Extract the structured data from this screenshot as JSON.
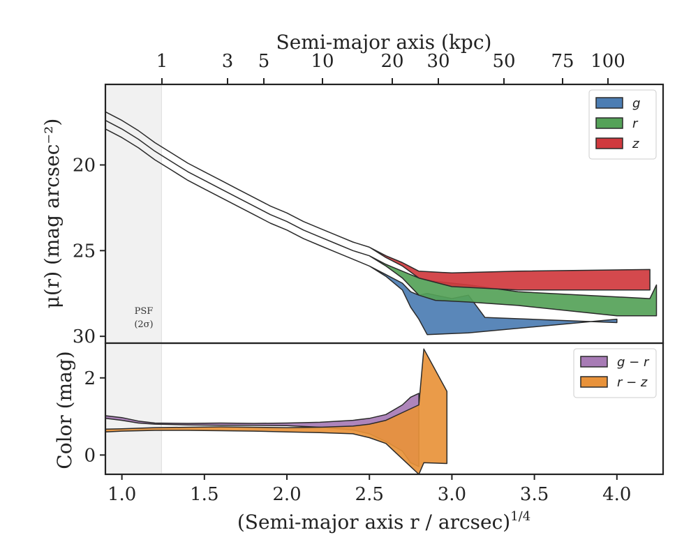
{
  "chart_data": [
    {
      "type": "area",
      "panel": "surface-brightness",
      "top_axis": {
        "label": "Semi-major axis (kpc)",
        "ticks": [
          1,
          3,
          5,
          10,
          20,
          30,
          50,
          75,
          100
        ],
        "tick_labels": [
          "1",
          "3",
          "5",
          "10",
          "20",
          "30",
          "50",
          "75",
          "100"
        ]
      },
      "ylabel": "μ(r) (mag arcsec⁻²)",
      "ylim": [
        30.4,
        15.3
      ],
      "yticks": [
        20,
        25,
        30
      ],
      "ytick_labels": [
        "20",
        "25",
        "30"
      ],
      "xlim": [
        0.9,
        4.28
      ],
      "legend": {
        "placement": "top-right",
        "entries": [
          "g",
          "r",
          "z"
        ]
      },
      "psf_label": [
        "PSF",
        "(2σ)"
      ],
      "psf_limit_x": 1.24,
      "series": [
        {
          "name": "g",
          "color": "#4c7db3",
          "upper": [
            [
              0.9,
              17.9
            ],
            [
              1.0,
              18.4
            ],
            [
              1.1,
              19.0
            ],
            [
              1.2,
              19.7
            ],
            [
              1.3,
              20.3
            ],
            [
              1.4,
              20.9
            ],
            [
              1.5,
              21.4
            ],
            [
              1.6,
              21.9
            ],
            [
              1.7,
              22.4
            ],
            [
              1.8,
              22.9
            ],
            [
              1.9,
              23.4
            ],
            [
              2.0,
              23.8
            ],
            [
              2.1,
              24.3
            ],
            [
              2.2,
              24.7
            ],
            [
              2.3,
              25.1
            ],
            [
              2.4,
              25.5
            ],
            [
              2.5,
              25.9
            ],
            [
              2.6,
              26.4
            ],
            [
              2.7,
              26.9
            ],
            [
              2.75,
              27.4
            ],
            [
              2.8,
              27.6
            ],
            [
              2.85,
              27.5
            ],
            [
              3.0,
              27.8
            ],
            [
              3.1,
              27.6
            ],
            [
              3.2,
              28.9
            ],
            [
              4.0,
              29.2
            ]
          ],
          "lower": [
            [
              0.9,
              17.9
            ],
            [
              1.0,
              18.4
            ],
            [
              1.1,
              19.0
            ],
            [
              1.2,
              19.7
            ],
            [
              1.3,
              20.3
            ],
            [
              1.4,
              20.9
            ],
            [
              1.5,
              21.4
            ],
            [
              1.6,
              21.9
            ],
            [
              1.7,
              22.4
            ],
            [
              1.8,
              22.9
            ],
            [
              1.9,
              23.4
            ],
            [
              2.0,
              23.8
            ],
            [
              2.1,
              24.3
            ],
            [
              2.2,
              24.7
            ],
            [
              2.3,
              25.1
            ],
            [
              2.4,
              25.5
            ],
            [
              2.5,
              25.9
            ],
            [
              2.6,
              26.5
            ],
            [
              2.7,
              27.3
            ],
            [
              2.75,
              28.3
            ],
            [
              2.8,
              29.0
            ],
            [
              2.85,
              29.9
            ],
            [
              3.1,
              29.8
            ],
            [
              4.0,
              29.0
            ]
          ]
        },
        {
          "name": "r",
          "color": "#55a258",
          "upper": [
            [
              0.9,
              17.4
            ],
            [
              1.0,
              17.9
            ],
            [
              1.1,
              18.5
            ],
            [
              1.2,
              19.2
            ],
            [
              1.3,
              19.8
            ],
            [
              1.4,
              20.4
            ],
            [
              1.5,
              20.9
            ],
            [
              1.6,
              21.4
            ],
            [
              1.7,
              21.9
            ],
            [
              1.8,
              22.4
            ],
            [
              1.9,
              22.9
            ],
            [
              2.0,
              23.3
            ],
            [
              2.1,
              23.8
            ],
            [
              2.2,
              24.2
            ],
            [
              2.3,
              24.6
            ],
            [
              2.4,
              25.0
            ],
            [
              2.5,
              25.3
            ],
            [
              2.6,
              25.8
            ],
            [
              2.7,
              26.2
            ],
            [
              2.8,
              26.6
            ],
            [
              2.9,
              26.8
            ],
            [
              3.1,
              27.0
            ],
            [
              3.4,
              27.4
            ],
            [
              4.2,
              27.8
            ],
            [
              4.24,
              27.0
            ]
          ],
          "lower": [
            [
              0.9,
              17.4
            ],
            [
              1.0,
              17.9
            ],
            [
              1.1,
              18.5
            ],
            [
              1.2,
              19.2
            ],
            [
              1.3,
              19.8
            ],
            [
              1.4,
              20.4
            ],
            [
              1.5,
              20.9
            ],
            [
              1.6,
              21.4
            ],
            [
              1.7,
              21.9
            ],
            [
              1.8,
              22.4
            ],
            [
              1.9,
              22.9
            ],
            [
              2.0,
              23.3
            ],
            [
              2.1,
              23.8
            ],
            [
              2.2,
              24.2
            ],
            [
              2.3,
              24.6
            ],
            [
              2.4,
              25.0
            ],
            [
              2.5,
              25.3
            ],
            [
              2.6,
              25.9
            ],
            [
              2.7,
              26.6
            ],
            [
              2.8,
              27.6
            ],
            [
              2.9,
              27.9
            ],
            [
              3.1,
              28.0
            ],
            [
              3.4,
              28.2
            ],
            [
              4.0,
              28.8
            ],
            [
              4.24,
              28.8
            ]
          ]
        },
        {
          "name": "z",
          "color": "#d0393e",
          "upper": [
            [
              0.9,
              16.9
            ],
            [
              1.0,
              17.4
            ],
            [
              1.1,
              18.0
            ],
            [
              1.2,
              18.7
            ],
            [
              1.3,
              19.3
            ],
            [
              1.4,
              19.9
            ],
            [
              1.5,
              20.4
            ],
            [
              1.6,
              20.9
            ],
            [
              1.7,
              21.4
            ],
            [
              1.8,
              21.9
            ],
            [
              1.9,
              22.4
            ],
            [
              2.0,
              22.8
            ],
            [
              2.1,
              23.3
            ],
            [
              2.2,
              23.7
            ],
            [
              2.3,
              24.1
            ],
            [
              2.4,
              24.5
            ],
            [
              2.5,
              24.8
            ],
            [
              2.6,
              25.3
            ],
            [
              2.7,
              25.7
            ],
            [
              2.8,
              26.2
            ],
            [
              3.0,
              26.3
            ],
            [
              3.4,
              26.2
            ],
            [
              4.2,
              26.1
            ]
          ],
          "lower": [
            [
              0.9,
              16.9
            ],
            [
              1.0,
              17.4
            ],
            [
              1.1,
              18.0
            ],
            [
              1.2,
              18.7
            ],
            [
              1.3,
              19.3
            ],
            [
              1.4,
              19.9
            ],
            [
              1.5,
              20.4
            ],
            [
              1.6,
              20.9
            ],
            [
              1.7,
              21.4
            ],
            [
              1.8,
              21.9
            ],
            [
              1.9,
              22.4
            ],
            [
              2.0,
              22.8
            ],
            [
              2.1,
              23.3
            ],
            [
              2.2,
              23.7
            ],
            [
              2.3,
              24.1
            ],
            [
              2.4,
              24.5
            ],
            [
              2.5,
              24.8
            ],
            [
              2.6,
              25.4
            ],
            [
              2.7,
              25.9
            ],
            [
              2.8,
              26.6
            ],
            [
              3.0,
              27.1
            ],
            [
              3.4,
              27.3
            ],
            [
              4.2,
              27.3
            ]
          ]
        }
      ]
    },
    {
      "type": "area",
      "panel": "color",
      "ylabel": "Color (mag)",
      "xlabel": "(Semi-major axis r / arcsec)",
      "xlabel_superscript": "1/4",
      "ylim": [
        -0.5,
        2.9
      ],
      "yticks": [
        0,
        2
      ],
      "ytick_labels": [
        "0",
        "2"
      ],
      "xlim": [
        0.9,
        4.28
      ],
      "xticks": [
        1.0,
        1.5,
        2.0,
        2.5,
        3.0,
        3.5,
        4.0
      ],
      "xtick_labels": [
        "1.0",
        "1.5",
        "2.0",
        "2.5",
        "3.0",
        "3.5",
        "4.0"
      ],
      "legend": {
        "placement": "top-right",
        "entries": [
          "g − r",
          "r − z"
        ]
      },
      "series": [
        {
          "name": "g − r",
          "color": "#a77bb5",
          "upper": [
            [
              0.9,
              1.02
            ],
            [
              1.0,
              0.97
            ],
            [
              1.1,
              0.88
            ],
            [
              1.2,
              0.83
            ],
            [
              1.4,
              0.82
            ],
            [
              1.6,
              0.83
            ],
            [
              1.8,
              0.82
            ],
            [
              2.0,
              0.83
            ],
            [
              2.2,
              0.85
            ],
            [
              2.4,
              0.9
            ],
            [
              2.5,
              0.95
            ],
            [
              2.6,
              1.05
            ],
            [
              2.7,
              1.3
            ],
            [
              2.75,
              1.5
            ],
            [
              2.8,
              1.6
            ]
          ],
          "lower": [
            [
              0.9,
              0.95
            ],
            [
              1.0,
              0.9
            ],
            [
              1.1,
              0.83
            ],
            [
              1.2,
              0.8
            ],
            [
              1.4,
              0.78
            ],
            [
              1.6,
              0.77
            ],
            [
              1.8,
              0.77
            ],
            [
              2.0,
              0.76
            ],
            [
              2.2,
              0.72
            ],
            [
              2.4,
              0.65
            ],
            [
              2.5,
              0.55
            ],
            [
              2.6,
              0.35
            ],
            [
              2.7,
              0.1
            ],
            [
              2.75,
              -0.2
            ],
            [
              2.8,
              -0.3
            ]
          ]
        },
        {
          "name": "r − z",
          "color": "#e8923a",
          "upper": [
            [
              0.9,
              0.67
            ],
            [
              1.0,
              0.68
            ],
            [
              1.2,
              0.71
            ],
            [
              1.4,
              0.72
            ],
            [
              1.6,
              0.73
            ],
            [
              1.8,
              0.72
            ],
            [
              2.0,
              0.71
            ],
            [
              2.2,
              0.72
            ],
            [
              2.4,
              0.75
            ],
            [
              2.5,
              0.8
            ],
            [
              2.6,
              0.9
            ],
            [
              2.7,
              1.1
            ],
            [
              2.8,
              1.3
            ],
            [
              2.83,
              2.75
            ],
            [
              2.97,
              1.65
            ]
          ],
          "lower": [
            [
              0.9,
              0.6
            ],
            [
              1.0,
              0.62
            ],
            [
              1.2,
              0.64
            ],
            [
              1.4,
              0.64
            ],
            [
              1.6,
              0.63
            ],
            [
              1.8,
              0.62
            ],
            [
              2.0,
              0.6
            ],
            [
              2.2,
              0.58
            ],
            [
              2.4,
              0.55
            ],
            [
              2.5,
              0.45
            ],
            [
              2.6,
              0.3
            ],
            [
              2.7,
              -0.1
            ],
            [
              2.8,
              -0.5
            ],
            [
              2.83,
              -0.2
            ],
            [
              2.97,
              -0.22
            ]
          ]
        }
      ]
    }
  ]
}
